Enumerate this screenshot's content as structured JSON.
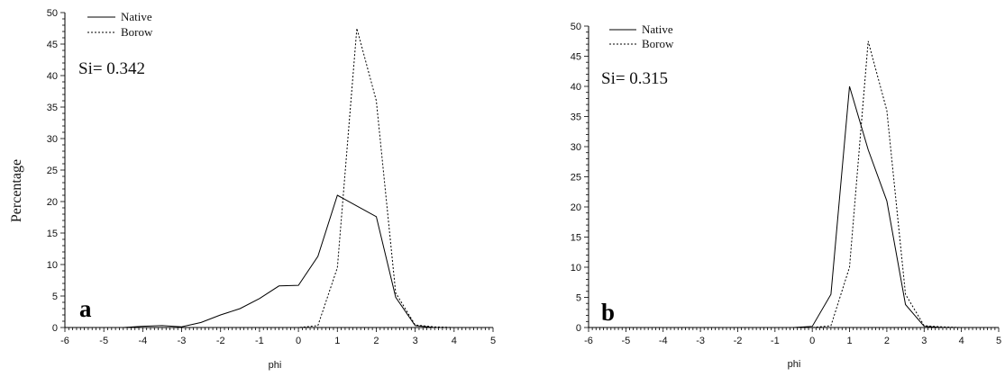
{
  "chart_data": [
    {
      "type": "line",
      "panel_label": "a",
      "annotation": "Si= 0.342",
      "xlabel": "phi",
      "ylabel": "Percentage",
      "xlim": [
        -6,
        5
      ],
      "ylim": [
        0,
        50
      ],
      "xticks": [
        -6,
        -5,
        -4,
        -3,
        -2,
        -1,
        0,
        1,
        2,
        3,
        4,
        5
      ],
      "yticks": [
        0,
        5,
        10,
        15,
        20,
        25,
        30,
        35,
        40,
        45,
        50
      ],
      "legend_position": "top-left",
      "series": [
        {
          "name": "Native",
          "style": "solid",
          "color": "#000000",
          "x": [
            -4.5,
            -4,
            -3.5,
            -3,
            -2.5,
            -2,
            -1.5,
            -1,
            -0.5,
            0,
            0.5,
            1,
            1.5,
            2,
            2.5,
            3,
            3.5,
            4,
            4.5
          ],
          "y": [
            0,
            0.2,
            0.3,
            0.1,
            0.8,
            2,
            3,
            4.6,
            6.6,
            6.7,
            11.3,
            21,
            19.3,
            17.6,
            4.8,
            0.3,
            0,
            0,
            0
          ]
        },
        {
          "name": "Borow",
          "style": "dashed",
          "color": "#000000",
          "x": [
            -4.5,
            -4,
            -3.5,
            -3,
            -2.5,
            -2,
            -1.5,
            -1,
            -0.5,
            0,
            0.5,
            1,
            1.5,
            2,
            2.5,
            3,
            3.5,
            4,
            4.5
          ],
          "y": [
            0,
            0,
            0,
            0,
            0,
            0,
            0,
            0,
            0,
            0,
            0.3,
            9.5,
            47.5,
            36,
            5.5,
            0.4,
            0.1,
            0,
            0
          ]
        }
      ]
    },
    {
      "type": "line",
      "panel_label": "b",
      "annotation": "Si= 0.315",
      "xlabel": "phi",
      "ylabel": "",
      "xlim": [
        -6,
        5
      ],
      "ylim": [
        0,
        50
      ],
      "xticks": [
        -6,
        -5,
        -4,
        -3,
        -2,
        -1,
        0,
        1,
        2,
        3,
        4,
        5
      ],
      "yticks": [
        0,
        5,
        10,
        15,
        20,
        25,
        30,
        35,
        40,
        45,
        50
      ],
      "legend_position": "top-left",
      "series": [
        {
          "name": "Native",
          "style": "solid",
          "color": "#000000",
          "x": [
            -2.5,
            -2,
            -1.5,
            -1,
            -0.5,
            0,
            0.5,
            1,
            1.5,
            2,
            2.5,
            3,
            3.5,
            4,
            4.5
          ],
          "y": [
            0,
            0,
            0,
            0,
            0,
            0.2,
            5.5,
            40,
            29.5,
            21,
            3.8,
            0.2,
            0,
            0,
            0
          ]
        },
        {
          "name": "Borow",
          "style": "dashed",
          "color": "#000000",
          "x": [
            -2.5,
            -2,
            -1.5,
            -1,
            -0.5,
            0,
            0.5,
            1,
            1.5,
            2,
            2.5,
            3,
            3.5,
            4,
            4.5
          ],
          "y": [
            0,
            0,
            0,
            0,
            0,
            0,
            0.3,
            10,
            47.5,
            36,
            5.5,
            0.3,
            0.1,
            0,
            0
          ]
        }
      ]
    }
  ]
}
